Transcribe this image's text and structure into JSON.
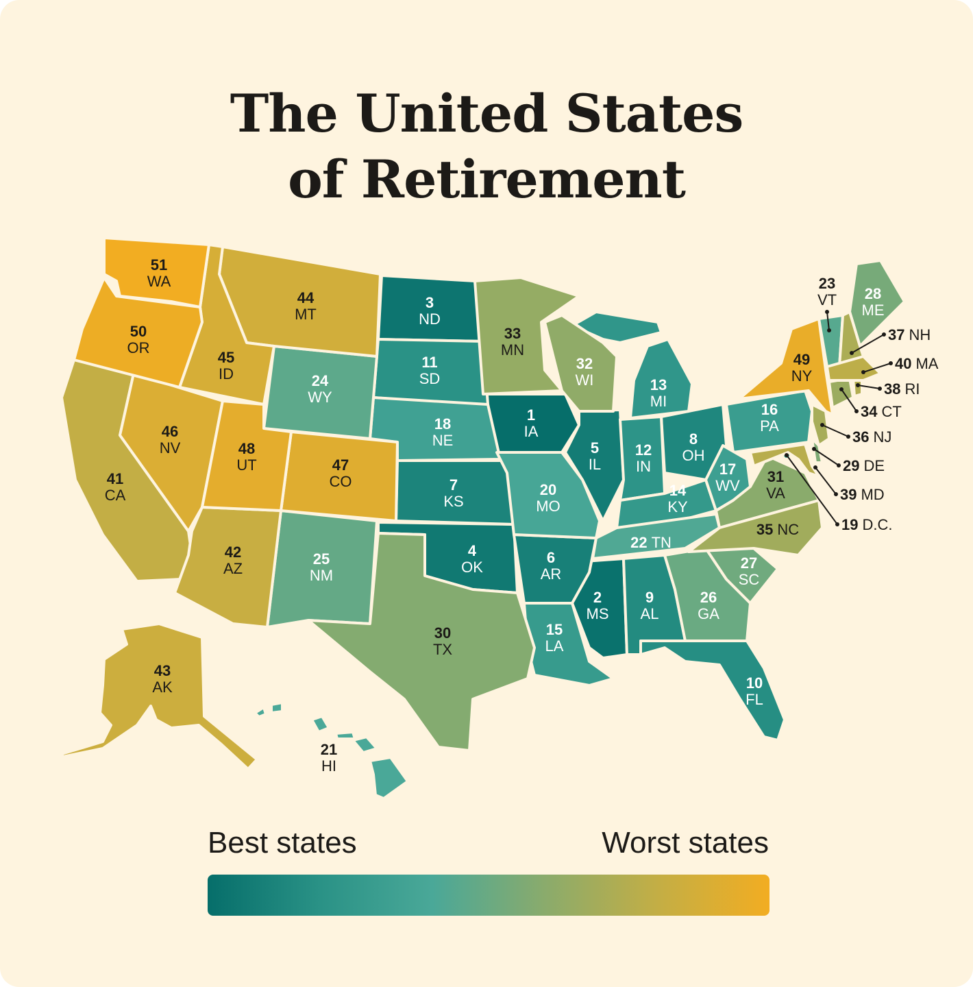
{
  "title_line1": "The United States",
  "title_line2": "of Retirement",
  "legend": {
    "best_label": "Best states",
    "worst_label": "Worst states",
    "colors": [
      "#066e6a",
      "#2a9286",
      "#4aa898",
      "#8aab6c",
      "#c3ae45",
      "#f2ad22"
    ]
  },
  "states": [
    {
      "rank": "1",
      "abbr": "IA"
    },
    {
      "rank": "2",
      "abbr": "MS"
    },
    {
      "rank": "3",
      "abbr": "ND"
    },
    {
      "rank": "4",
      "abbr": "OK"
    },
    {
      "rank": "5",
      "abbr": "IL"
    },
    {
      "rank": "6",
      "abbr": "AR"
    },
    {
      "rank": "7",
      "abbr": "KS"
    },
    {
      "rank": "8",
      "abbr": "OH"
    },
    {
      "rank": "9",
      "abbr": "AL"
    },
    {
      "rank": "10",
      "abbr": "FL"
    },
    {
      "rank": "11",
      "abbr": "SD"
    },
    {
      "rank": "12",
      "abbr": "IN"
    },
    {
      "rank": "13",
      "abbr": "MI"
    },
    {
      "rank": "14",
      "abbr": "KY"
    },
    {
      "rank": "15",
      "abbr": "LA"
    },
    {
      "rank": "16",
      "abbr": "PA"
    },
    {
      "rank": "17",
      "abbr": "WV"
    },
    {
      "rank": "18",
      "abbr": "NE"
    },
    {
      "rank": "19",
      "abbr": "D.C."
    },
    {
      "rank": "20",
      "abbr": "MO"
    },
    {
      "rank": "21",
      "abbr": "HI"
    },
    {
      "rank": "22",
      "abbr": "TN"
    },
    {
      "rank": "23",
      "abbr": "VT"
    },
    {
      "rank": "24",
      "abbr": "WY"
    },
    {
      "rank": "25",
      "abbr": "NM"
    },
    {
      "rank": "26",
      "abbr": "GA"
    },
    {
      "rank": "27",
      "abbr": "SC"
    },
    {
      "rank": "28",
      "abbr": "ME"
    },
    {
      "rank": "29",
      "abbr": "DE"
    },
    {
      "rank": "30",
      "abbr": "TX"
    },
    {
      "rank": "31",
      "abbr": "VA"
    },
    {
      "rank": "32",
      "abbr": "WI"
    },
    {
      "rank": "33",
      "abbr": "MN"
    },
    {
      "rank": "34",
      "abbr": "CT"
    },
    {
      "rank": "35",
      "abbr": "NC"
    },
    {
      "rank": "36",
      "abbr": "NJ"
    },
    {
      "rank": "37",
      "abbr": "NH"
    },
    {
      "rank": "38",
      "abbr": "RI"
    },
    {
      "rank": "39",
      "abbr": "MD"
    },
    {
      "rank": "40",
      "abbr": "MA"
    },
    {
      "rank": "41",
      "abbr": "CA"
    },
    {
      "rank": "42",
      "abbr": "AZ"
    },
    {
      "rank": "43",
      "abbr": "AK"
    },
    {
      "rank": "44",
      "abbr": "MT"
    },
    {
      "rank": "45",
      "abbr": "ID"
    },
    {
      "rank": "46",
      "abbr": "NV"
    },
    {
      "rank": "47",
      "abbr": "CO"
    },
    {
      "rank": "48",
      "abbr": "UT"
    },
    {
      "rank": "49",
      "abbr": "NY"
    },
    {
      "rank": "50",
      "abbr": "OR"
    },
    {
      "rank": "51",
      "abbr": "WA"
    }
  ]
}
